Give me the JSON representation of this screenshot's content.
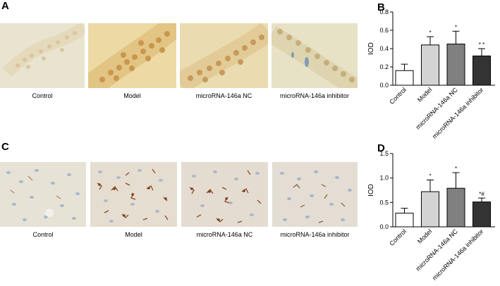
{
  "panels": {
    "A": {
      "letter": "A",
      "captions": [
        "Control",
        "Model",
        "microRNA-146a NC",
        "microRNA-146a inhibitor"
      ]
    },
    "B": {
      "letter": "B"
    },
    "C": {
      "letter": "C",
      "captions": [
        "Control",
        "Model",
        "microRNA-146a NC",
        "microRNA-146a inhibitor"
      ]
    },
    "D": {
      "letter": "D"
    }
  },
  "colors": {
    "bar_fills": [
      "#ffffff",
      "#d3d3d3",
      "#808080",
      "#333333"
    ],
    "axis": "#000000"
  },
  "chart_data": [
    {
      "panel": "B",
      "type": "bar",
      "categories": [
        "Control",
        "Model",
        "microRNA-146a NC",
        "microRNA-146a inhibitor"
      ],
      "values": [
        0.16,
        0.44,
        0.45,
        0.32
      ],
      "errors": [
        0.07,
        0.09,
        0.14,
        0.08
      ],
      "annotations": [
        "",
        "*",
        "*",
        "* *"
      ],
      "ylabel": "IOD",
      "ylim": [
        0,
        0.8
      ],
      "yticks": [
        "0.0",
        "0.2",
        "0.4",
        "0.6",
        "0.8"
      ],
      "ytick_values": [
        0,
        0.2,
        0.4,
        0.6,
        0.8
      ]
    },
    {
      "panel": "D",
      "type": "bar",
      "categories": [
        "Control",
        "Model",
        "microRNA-146a NC",
        "microRNA-146a inhibitor"
      ],
      "values": [
        0.28,
        0.72,
        0.79,
        0.51
      ],
      "errors": [
        0.1,
        0.24,
        0.32,
        0.08
      ],
      "annotations": [
        "",
        "*",
        "*",
        "*#"
      ],
      "ylabel": "IOD",
      "ylim": [
        0,
        1.5
      ],
      "yticks": [
        "0.0",
        "0.5",
        "1.0",
        "1.5"
      ],
      "ytick_values": [
        0,
        0.5,
        1.0,
        1.5
      ]
    }
  ]
}
